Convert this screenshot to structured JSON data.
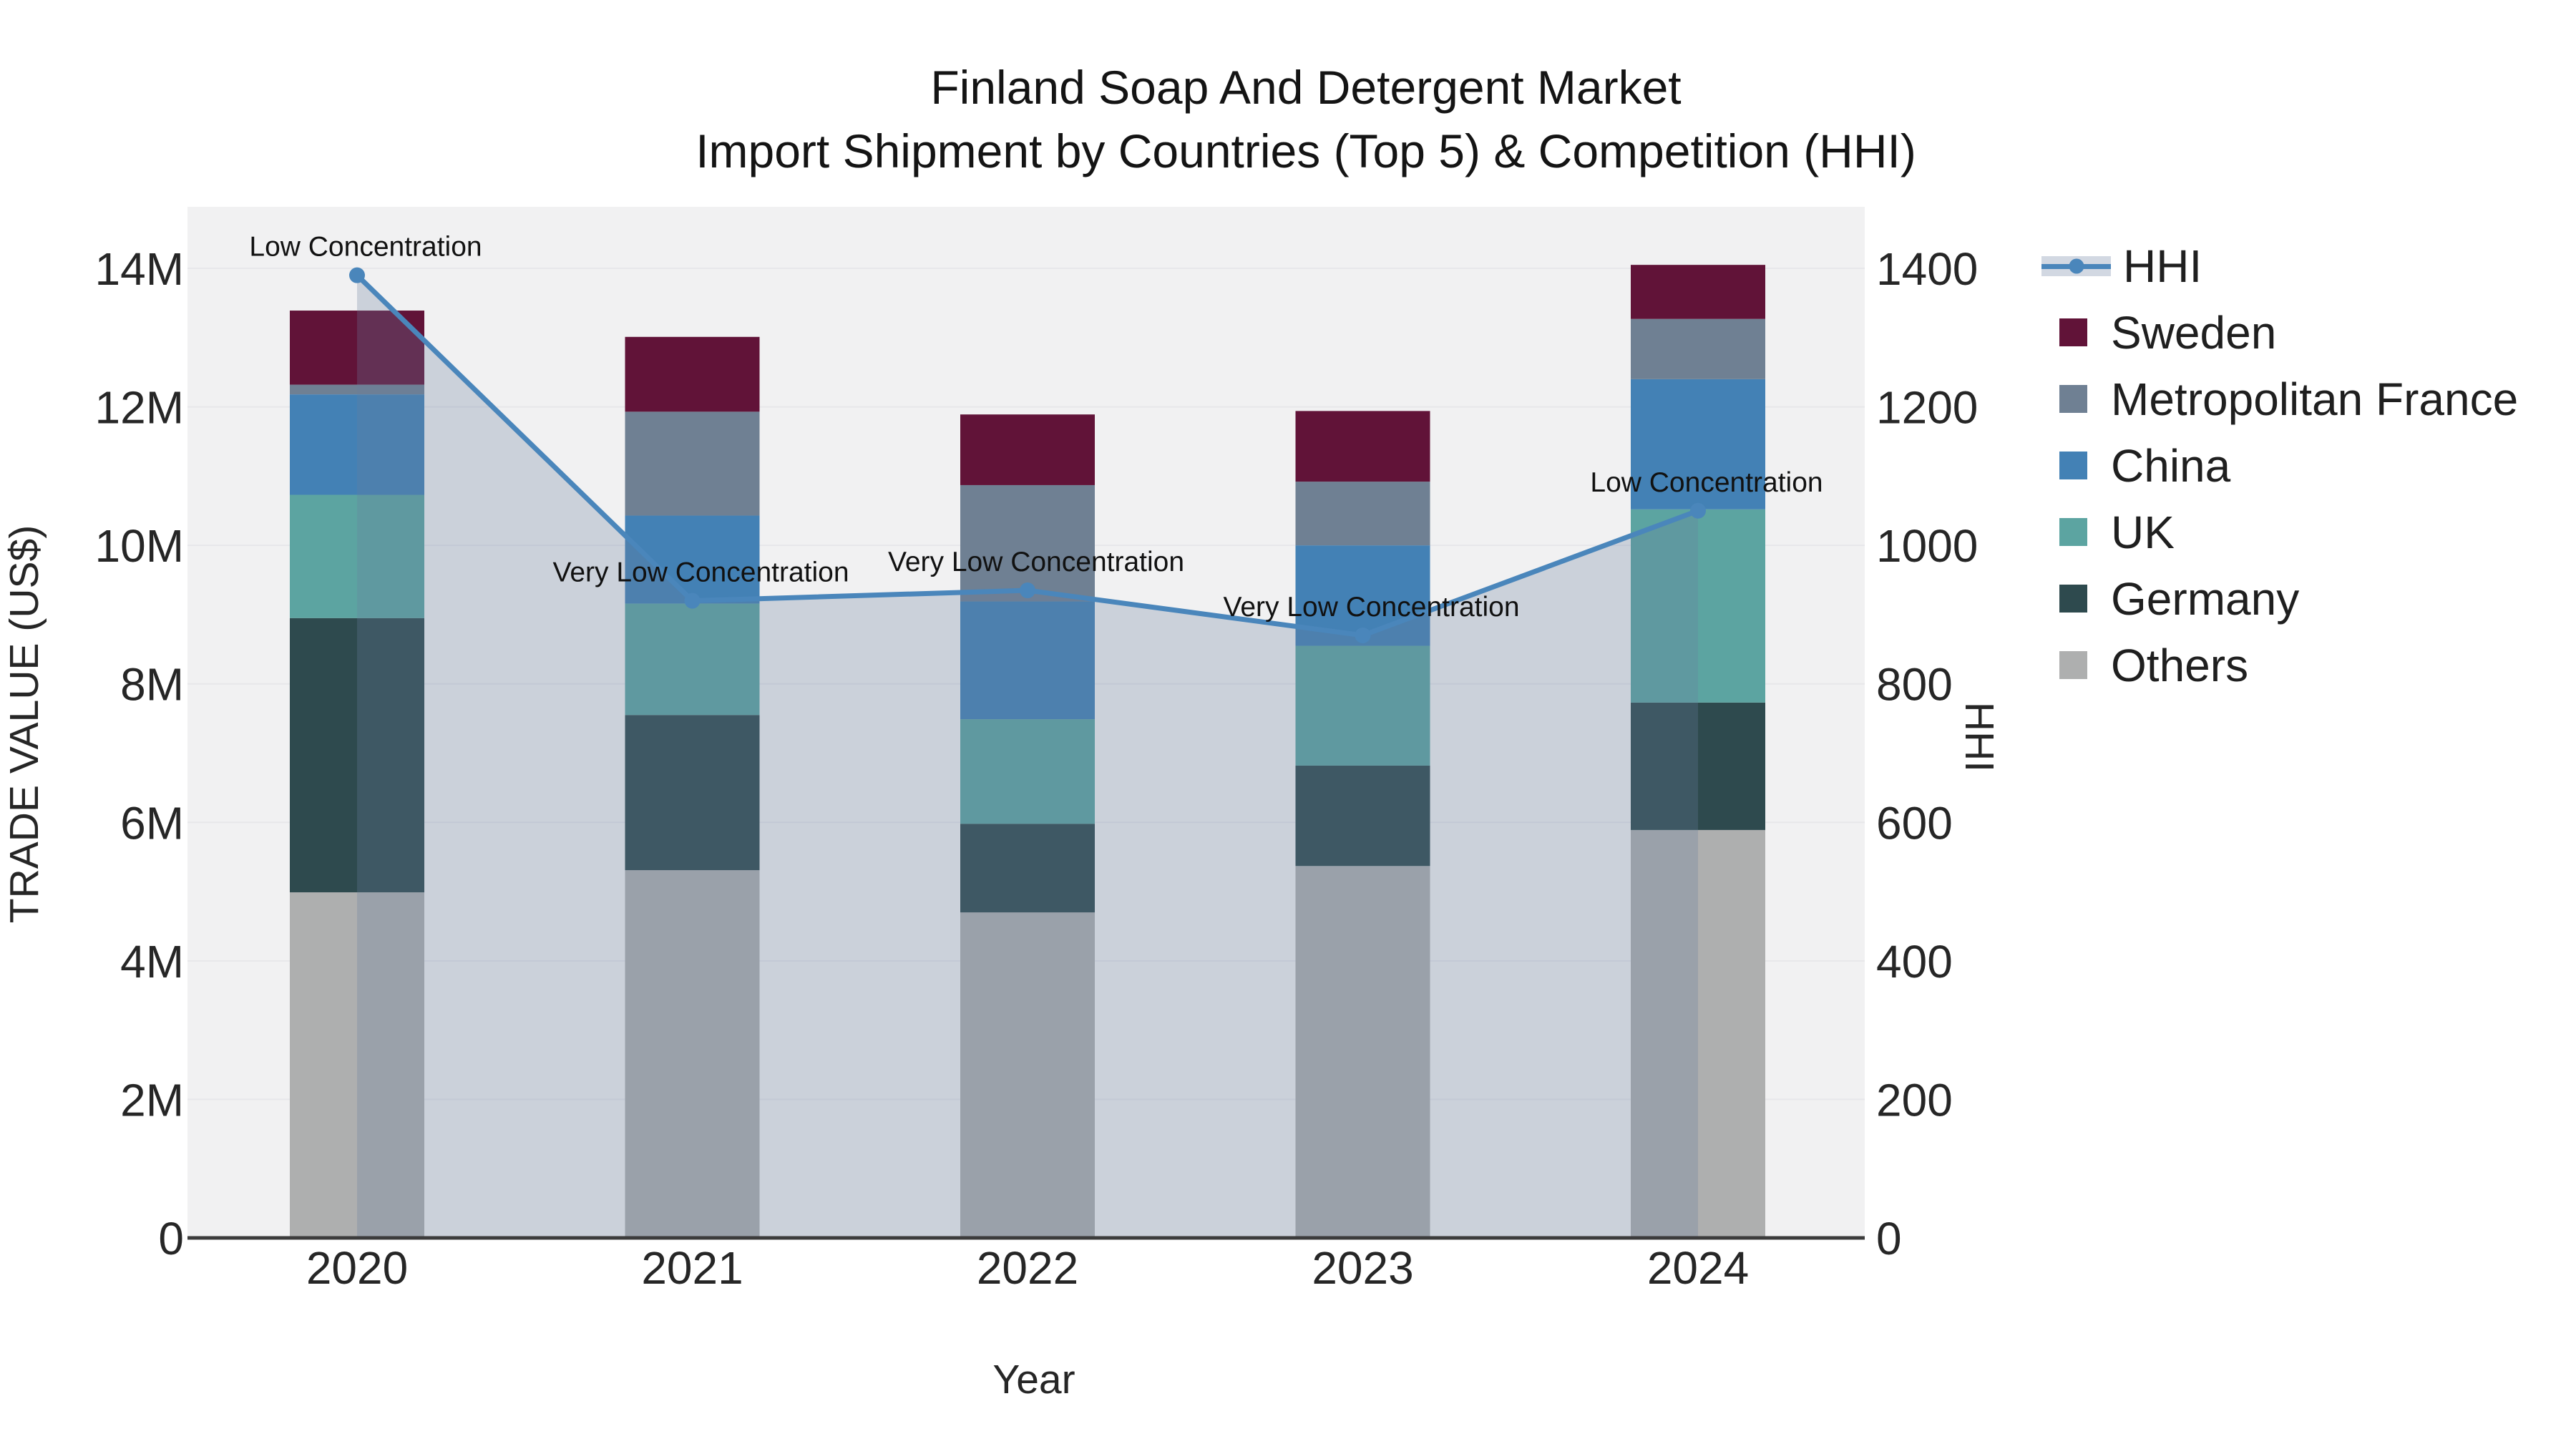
{
  "title": {
    "line1": "Finland Soap And Detergent Market",
    "line2": "Import Shipment by Countries (Top 5) & Competition (HHI)"
  },
  "chart_data": {
    "type": "bar+line",
    "subtype": "stacked bars (trade value) with HHI line + shaded area overlay",
    "categories": [
      "2020",
      "2021",
      "2022",
      "2023",
      "2024"
    ],
    "xlabel": "Year",
    "y_left": {
      "label": "TRADE VALUE (US$)",
      "ticks": [
        "0",
        "2M",
        "4M",
        "6M",
        "8M",
        "10M",
        "12M",
        "14M"
      ],
      "tick_values": [
        0,
        2,
        4,
        6,
        8,
        10,
        12,
        14
      ],
      "range_millions": [
        0,
        14.9
      ],
      "grid": true
    },
    "y_right": {
      "label": "HHI",
      "ticks": [
        "0",
        "200",
        "400",
        "600",
        "800",
        "1000",
        "1200",
        "1400"
      ],
      "tick_values": [
        0,
        200,
        400,
        600,
        800,
        1000,
        1200,
        1400
      ],
      "range": [
        0,
        1490
      ]
    },
    "series": [
      {
        "name": "Sweden",
        "color": "#611338",
        "values_millions": [
          1.07,
          1.08,
          1.02,
          1.02,
          0.78
        ]
      },
      {
        "name": "Metropolitan France",
        "color": "#6f8093",
        "values_millions": [
          0.14,
          1.5,
          1.68,
          0.92,
          0.87
        ]
      },
      {
        "name": "China",
        "color": "#4381b5",
        "values_millions": [
          1.45,
          1.27,
          1.7,
          1.45,
          1.88
        ]
      },
      {
        "name": "UK",
        "color": "#5ca4a1",
        "values_millions": [
          1.78,
          1.61,
          1.51,
          1.73,
          2.79
        ]
      },
      {
        "name": "Germany",
        "color": "#2e4a4e",
        "values_millions": [
          3.96,
          2.24,
          1.28,
          1.45,
          1.84
        ]
      },
      {
        "name": "Others",
        "color": "#aeafaf",
        "values_millions": [
          4.99,
          5.31,
          4.7,
          5.37,
          5.89
        ]
      }
    ],
    "stack_order_bottom_to_top": [
      "Others",
      "Germany",
      "UK",
      "China",
      "Metropolitan France",
      "Sweden"
    ],
    "bar_totals_millions": [
      13.39,
      13.01,
      11.89,
      11.94,
      14.05
    ],
    "hhi": {
      "name": "HHI",
      "line_color": "#4a86bb",
      "area_color": "rgba(105,125,158,0.28)",
      "values": [
        1390,
        920,
        935,
        870,
        1050
      ],
      "annotations": [
        "Low Concentration",
        "Very Low Concentration",
        "Very Low Concentration",
        "Very Low Concentration",
        "Low Concentration"
      ]
    },
    "legend_position": "right",
    "plot_bg": "#f1f1f2",
    "grid_color": "#e7e7ea",
    "axis_line_color": "#3c3c3c"
  },
  "legend": {
    "items": [
      {
        "label": "HHI",
        "type": "hhi",
        "band_color": "#d2d8e2",
        "line_color": "#4a86bb"
      },
      {
        "label": "Sweden",
        "type": "swatch",
        "color": "#611338"
      },
      {
        "label": "Metropolitan France",
        "type": "swatch",
        "color": "#6f8093"
      },
      {
        "label": "China",
        "type": "swatch",
        "color": "#4381b5"
      },
      {
        "label": "UK",
        "type": "swatch",
        "color": "#5ca4a1"
      },
      {
        "label": "Germany",
        "type": "swatch",
        "color": "#2e4a4e"
      },
      {
        "label": "Others",
        "type": "swatch",
        "color": "#aeafaf"
      }
    ]
  }
}
